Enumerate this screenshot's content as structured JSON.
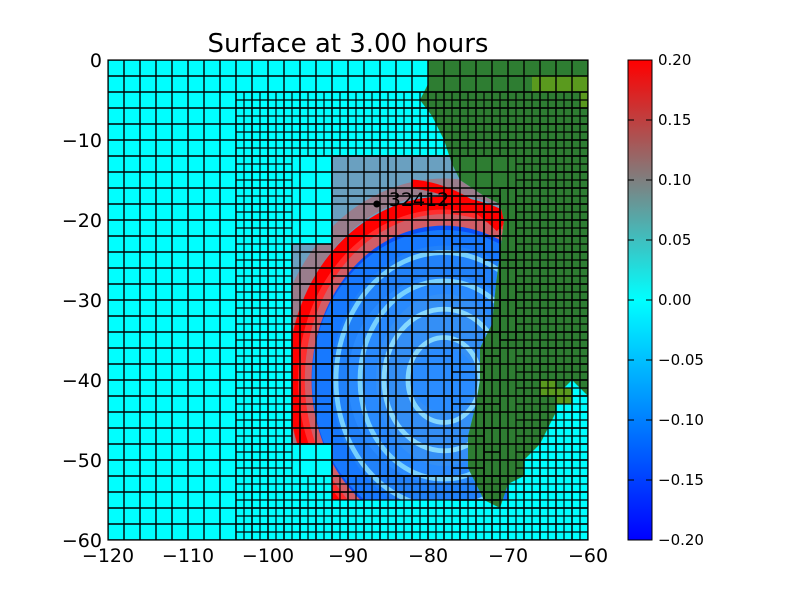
{
  "chart_data": {
    "type": "heatmap",
    "title": "Surface at 3.00 hours",
    "xlabel": "",
    "ylabel": "",
    "xlim": [
      -120,
      -60
    ],
    "ylim": [
      -60,
      0
    ],
    "x_ticks": [
      -120,
      -110,
      -100,
      -90,
      -80,
      -70,
      -60
    ],
    "x_tick_labels": [
      "−120",
      "−110",
      "−100",
      "−90",
      "−80",
      "−70",
      "−60"
    ],
    "y_ticks": [
      0,
      -10,
      -20,
      -30,
      -40,
      -50,
      -60
    ],
    "y_tick_labels": [
      "0",
      "−10",
      "−20",
      "−30",
      "−40",
      "−50",
      "−60"
    ],
    "colorbar": {
      "range": [
        -0.2,
        0.2
      ],
      "ticks": [
        0.2,
        0.15,
        0.1,
        0.05,
        0.0,
        -0.05,
        -0.1,
        -0.15,
        -0.2
      ],
      "tick_labels": [
        "0.20",
        "0.15",
        "0.10",
        "0.05",
        "0.00",
        "−0.05",
        "−0.10",
        "−0.15",
        "−0.20"
      ]
    },
    "gauge": {
      "label": "32412",
      "x": -86.4,
      "y": -18.0
    },
    "wave_center": [
      -78,
      -40
    ],
    "refinement_patches": [
      {
        "level": 1,
        "x": [
          -120,
          -60
        ],
        "y": [
          -60,
          0
        ],
        "cell": 2
      },
      {
        "level": 2,
        "x": [
          -104,
          -60
        ],
        "y": [
          -60,
          -4
        ],
        "cell": 1
      },
      {
        "level": 3,
        "x": [
          -97,
          -92
        ],
        "y": [
          -48,
          -23
        ],
        "cell": 5
      },
      {
        "level": 3,
        "x": [
          -92,
          -77
        ],
        "y": [
          -52,
          -12
        ],
        "cell": 5
      },
      {
        "level": 3,
        "x": [
          -77,
          -73
        ],
        "y": [
          -55,
          -17
        ],
        "cell": 4
      },
      {
        "level": 3,
        "x": [
          -73,
          -71
        ],
        "y": [
          -55,
          -17
        ],
        "cell": 3
      },
      {
        "level": 3,
        "x": [
          -71,
          -69
        ],
        "y": [
          -35,
          -16
        ],
        "cell": 5
      }
    ],
    "colors": {
      "ocean_zero": "#00ffff",
      "land_dark": "#2e7d32",
      "land_light": "#5a9a1e",
      "positive": "#ff0000",
      "negative": "#0000ff"
    }
  }
}
